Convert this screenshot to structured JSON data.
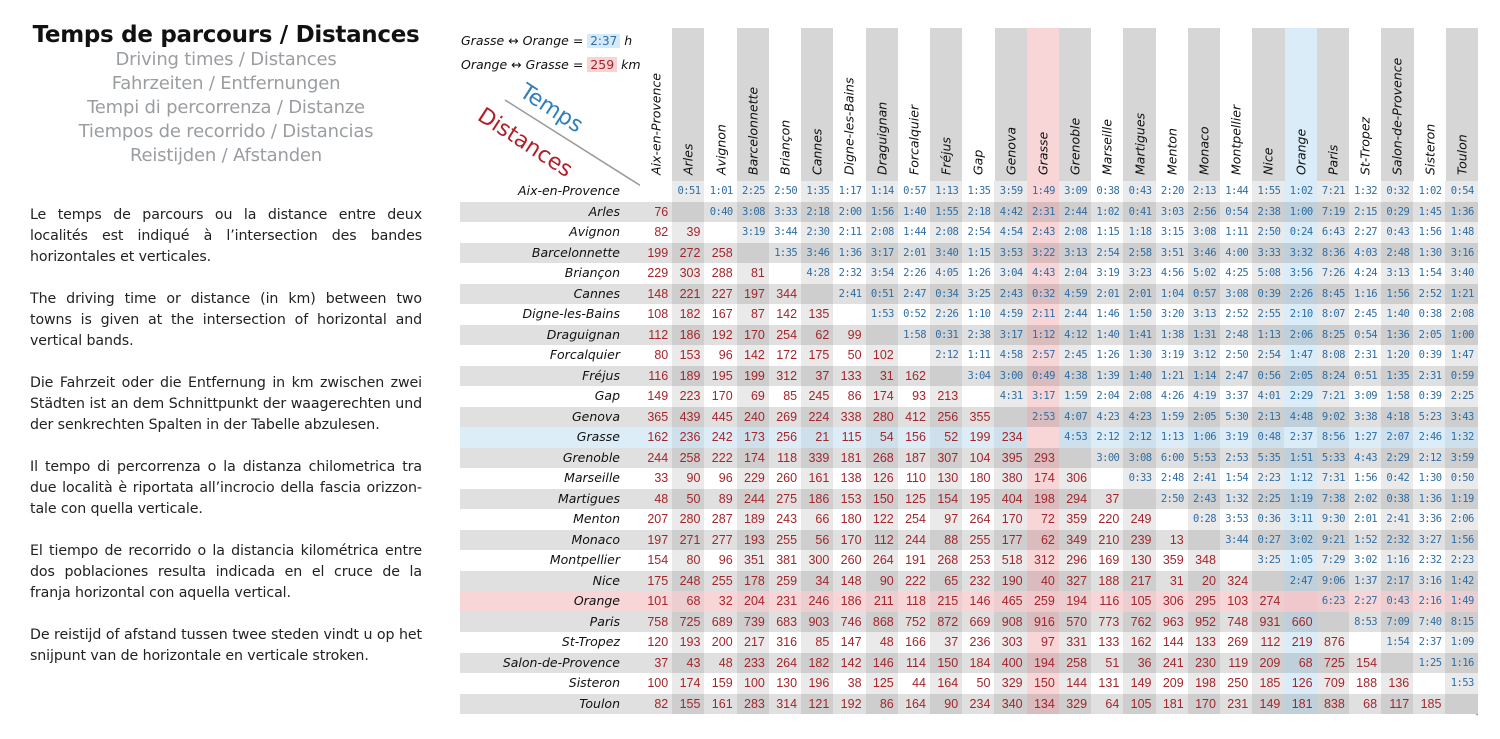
{
  "header": {
    "title": "Temps de parcours / Distances",
    "subtitles": [
      "Driving times / Distances",
      "Fahrzeiten / Entfernungen",
      "Tempi di percorrenza / Distanze",
      "Tiempos de recorrido / Distancias",
      "Reistijden / Afstanden"
    ]
  },
  "paragraphs": [
    "Le temps de parcours ou la distance entre deux localités est indiqué à l’intersection des bandes horizontales et verticales.",
    "The driving time or distance (in km) between two towns is given at the intersection of horizontal and vertical bands.",
    "Die Fahrzeit oder die Entfernung in km zwischen zwei Städten ist an dem Schnittpunkt der waagerechten und der senkrechten Spalten in der Tabelle abzulesen.",
    "Il tempo di percorrenza o la distanza chilometrica tra due località è riportata all’incrocio della fascia orizzon­tale con quella verticale.",
    "El tiempo de recorrido o la distancia kilométrica entre dos poblaciones resulta indicada en el cruce de la franja horizontal con aquella vertical.",
    "De reistijd of afstand tussen twee steden vindt u op het snijpunt van de horizontale en verticale stroken."
  ],
  "legend": {
    "time_example": {
      "from": "Grasse",
      "to": "Orange",
      "arrow": "↔",
      "eq": "=",
      "value": "2:37",
      "unit": "h"
    },
    "distance_example": {
      "from": "Orange",
      "to": "Grasse",
      "arrow": "↔",
      "eq": "=",
      "value": "259",
      "unit": "km"
    },
    "temps_label": "Temps",
    "distances_label": "Distances"
  },
  "colors": {
    "time": "#2e6ea5",
    "distance": "#a3262c",
    "highlight_grasse_col": "#f8d6d8",
    "highlight_orange_col": "#d9ecf8"
  },
  "highlight": {
    "time_town": "Grasse",
    "distance_town": "Orange"
  },
  "towns": [
    "Aix-en-Provence",
    "Arles",
    "Avignon",
    "Barcelonnette",
    "Briançon",
    "Cannes",
    "Digne-les-Bains",
    "Draguignan",
    "Forcalquier",
    "Fréjus",
    "Gap",
    "Genova",
    "Grasse",
    "Grenoble",
    "Marseille",
    "Martigues",
    "Menton",
    "Monaco",
    "Montpellier",
    "Nice",
    "Orange",
    "Paris",
    "St-Tropez",
    "Salon-de-Provence",
    "Sisteron",
    "Toulon"
  ],
  "matrix": [
    {
      "distances": [],
      "times": [
        "0:51",
        "1:01",
        "2:25",
        "2:50",
        "1:35",
        "1:17",
        "1:14",
        "0:57",
        "1:13",
        "1:35",
        "3:59",
        "1:49",
        "3:09",
        "0:38",
        "0:43",
        "2:20",
        "2:13",
        "1:44",
        "1:55",
        "1:02",
        "7:21",
        "1:32",
        "0:32",
        "1:02",
        "0:54"
      ]
    },
    {
      "distances": [
        "76"
      ],
      "times": [
        "0:40",
        "3:08",
        "3:33",
        "2:18",
        "2:00",
        "1:56",
        "1:40",
        "1:55",
        "2:18",
        "4:42",
        "2:31",
        "2:44",
        "1:02",
        "0:41",
        "3:03",
        "2:56",
        "0:54",
        "2:38",
        "1:00",
        "7:19",
        "2:15",
        "0:29",
        "1:45",
        "1:36"
      ]
    },
    {
      "distances": [
        "82",
        "39"
      ],
      "times": [
        "3:19",
        "3:44",
        "2:30",
        "2:11",
        "2:08",
        "1:44",
        "2:08",
        "2:54",
        "4:54",
        "2:43",
        "2:08",
        "1:15",
        "1:18",
        "3:15",
        "3:08",
        "1:11",
        "2:50",
        "0:24",
        "6:43",
        "2:27",
        "0:43",
        "1:56",
        "1:48"
      ]
    },
    {
      "distances": [
        "199",
        "272",
        "258"
      ],
      "times": [
        "1:35",
        "3:46",
        "1:36",
        "3:17",
        "2:01",
        "3:40",
        "1:15",
        "3:53",
        "3:22",
        "3:13",
        "2:54",
        "2:58",
        "3:51",
        "3:46",
        "4:00",
        "3:33",
        "3:32",
        "8:36",
        "4:03",
        "2:48",
        "1:30",
        "3:16"
      ]
    },
    {
      "distances": [
        "229",
        "303",
        "288",
        "81"
      ],
      "times": [
        "4:28",
        "2:32",
        "3:54",
        "2:26",
        "4:05",
        "1:26",
        "3:04",
        "4:43",
        "2:04",
        "3:19",
        "3:23",
        "4:56",
        "5:02",
        "4:25",
        "5:08",
        "3:56",
        "7:26",
        "4:24",
        "3:13",
        "1:54",
        "3:40"
      ]
    },
    {
      "distances": [
        "148",
        "221",
        "227",
        "197",
        "344"
      ],
      "times": [
        "2:41",
        "0:51",
        "2:47",
        "0:34",
        "3:25",
        "2:43",
        "0:32",
        "4:59",
        "2:01",
        "2:01",
        "1:04",
        "0:57",
        "3:08",
        "0:39",
        "2:26",
        "8:45",
        "1:16",
        "1:56",
        "2:52",
        "1:21"
      ]
    },
    {
      "distances": [
        "108",
        "182",
        "167",
        "87",
        "142",
        "135"
      ],
      "times": [
        "1:53",
        "0:52",
        "2:26",
        "1:10",
        "4:59",
        "2:11",
        "2:44",
        "1:46",
        "1:50",
        "3:20",
        "3:13",
        "2:52",
        "2:55",
        "2:10",
        "8:07",
        "2:45",
        "1:40",
        "0:38",
        "2:08"
      ]
    },
    {
      "distances": [
        "112",
        "186",
        "192",
        "170",
        "254",
        "62",
        "99"
      ],
      "times": [
        "1:58",
        "0:31",
        "2:38",
        "3:17",
        "1:12",
        "4:12",
        "1:40",
        "1:41",
        "1:38",
        "1:31",
        "2:48",
        "1:13",
        "2:06",
        "8:25",
        "0:54",
        "1:36",
        "2:05",
        "1:00"
      ]
    },
    {
      "distances": [
        "80",
        "153",
        "96",
        "142",
        "172",
        "175",
        "50",
        "102"
      ],
      "times": [
        "2:12",
        "1:11",
        "4:58",
        "2:57",
        "2:45",
        "1:26",
        "1:30",
        "3:19",
        "3:12",
        "2:50",
        "2:54",
        "1:47",
        "8:08",
        "2:31",
        "1:20",
        "0:39",
        "1:47"
      ]
    },
    {
      "distances": [
        "116",
        "189",
        "195",
        "199",
        "312",
        "37",
        "133",
        "31",
        "162"
      ],
      "times": [
        "3:04",
        "3:00",
        "0:49",
        "4:38",
        "1:39",
        "1:40",
        "1:21",
        "1:14",
        "2:47",
        "0:56",
        "2:05",
        "8:24",
        "0:51",
        "1:35",
        "2:31",
        "0:59"
      ]
    },
    {
      "distances": [
        "149",
        "223",
        "170",
        "69",
        "85",
        "245",
        "86",
        "174",
        "93",
        "213"
      ],
      "times": [
        "4:31",
        "3:17",
        "1:59",
        "2:04",
        "2:08",
        "4:26",
        "4:19",
        "3:37",
        "4:01",
        "2:29",
        "7:21",
        "3:09",
        "1:58",
        "0:39",
        "2:25"
      ]
    },
    {
      "distances": [
        "365",
        "439",
        "445",
        "240",
        "269",
        "224",
        "338",
        "280",
        "412",
        "256",
        "355"
      ],
      "times": [
        "2:53",
        "4:07",
        "4:23",
        "4:23",
        "1:59",
        "2:05",
        "5:30",
        "2:13",
        "4:48",
        "9:02",
        "3:38",
        "4:18",
        "5:23",
        "3:43"
      ]
    },
    {
      "distances": [
        "162",
        "236",
        "242",
        "173",
        "256",
        "21",
        "115",
        "54",
        "156",
        "52",
        "199",
        "234"
      ],
      "times": [
        "4:53",
        "2:12",
        "2:12",
        "1:13",
        "1:06",
        "3:19",
        "0:48",
        "2:37",
        "8:56",
        "1:27",
        "2:07",
        "2:46",
        "1:32"
      ]
    },
    {
      "distances": [
        "244",
        "258",
        "222",
        "174",
        "118",
        "339",
        "181",
        "268",
        "187",
        "307",
        "104",
        "395",
        "293"
      ],
      "times": [
        "3:00",
        "3:08",
        "6:00",
        "5:53",
        "2:53",
        "5:35",
        "1:51",
        "5:33",
        "4:43",
        "2:29",
        "2:12",
        "3:59"
      ]
    },
    {
      "distances": [
        "33",
        "90",
        "96",
        "229",
        "260",
        "161",
        "138",
        "126",
        "110",
        "130",
        "180",
        "380",
        "174",
        "306"
      ],
      "times": [
        "0:33",
        "2:48",
        "2:41",
        "1:54",
        "2:23",
        "1:12",
        "7:31",
        "1:56",
        "0:42",
        "1:30",
        "0:50"
      ]
    },
    {
      "distances": [
        "48",
        "50",
        "89",
        "244",
        "275",
        "186",
        "153",
        "150",
        "125",
        "154",
        "195",
        "404",
        "198",
        "294",
        "37"
      ],
      "times": [
        "2:50",
        "2:43",
        "1:32",
        "2:25",
        "1:19",
        "7:38",
        "2:02",
        "0:38",
        "1:36",
        "1:19"
      ]
    },
    {
      "distances": [
        "207",
        "280",
        "287",
        "189",
        "243",
        "66",
        "180",
        "122",
        "254",
        "97",
        "264",
        "170",
        "72",
        "359",
        "220",
        "249"
      ],
      "times": [
        "0:28",
        "3:53",
        "0:36",
        "3:11",
        "9:30",
        "2:01",
        "2:41",
        "3:36",
        "2:06"
      ]
    },
    {
      "distances": [
        "197",
        "271",
        "277",
        "193",
        "255",
        "56",
        "170",
        "112",
        "244",
        "88",
        "255",
        "177",
        "62",
        "349",
        "210",
        "239",
        "13"
      ],
      "times": [
        "3:44",
        "0:27",
        "3:02",
        "9:21",
        "1:52",
        "2:32",
        "3:27",
        "1:56"
      ]
    },
    {
      "distances": [
        "154",
        "80",
        "96",
        "351",
        "381",
        "300",
        "260",
        "264",
        "191",
        "268",
        "253",
        "518",
        "312",
        "296",
        "169",
        "130",
        "359",
        "348"
      ],
      "times": [
        "3:25",
        "1:05",
        "7:29",
        "3:02",
        "1:16",
        "2:32",
        "2:23"
      ]
    },
    {
      "distances": [
        "175",
        "248",
        "255",
        "178",
        "259",
        "34",
        "148",
        "90",
        "222",
        "65",
        "232",
        "190",
        "40",
        "327",
        "188",
        "217",
        "31",
        "20",
        "324"
      ],
      "times": [
        "2:47",
        "9:06",
        "1:37",
        "2:17",
        "3:16",
        "1:42"
      ]
    },
    {
      "distances": [
        "101",
        "68",
        "32",
        "204",
        "231",
        "246",
        "186",
        "211",
        "118",
        "215",
        "146",
        "465",
        "259",
        "194",
        "116",
        "105",
        "306",
        "295",
        "103",
        "274"
      ],
      "times": [
        "6:23",
        "2:27",
        "0:43",
        "2:16",
        "1:49"
      ]
    },
    {
      "distances": [
        "758",
        "725",
        "689",
        "739",
        "683",
        "903",
        "746",
        "868",
        "752",
        "872",
        "669",
        "908",
        "916",
        "570",
        "773",
        "762",
        "963",
        "952",
        "748",
        "931",
        "660"
      ],
      "times": [
        "8:53",
        "7:09",
        "7:40",
        "8:15"
      ]
    },
    {
      "distances": [
        "120",
        "193",
        "200",
        "217",
        "316",
        "85",
        "147",
        "48",
        "166",
        "37",
        "236",
        "303",
        "97",
        "331",
        "133",
        "162",
        "144",
        "133",
        "269",
        "112",
        "219",
        "876"
      ],
      "times": [
        "1:54",
        "2:37",
        "1:09"
      ]
    },
    {
      "distances": [
        "37",
        "43",
        "48",
        "233",
        "264",
        "182",
        "142",
        "146",
        "114",
        "150",
        "184",
        "400",
        "194",
        "258",
        "51",
        "36",
        "241",
        "230",
        "119",
        "209",
        "68",
        "725",
        "154"
      ],
      "times": [
        "1:25",
        "1:16"
      ]
    },
    {
      "distances": [
        "100",
        "174",
        "159",
        "100",
        "130",
        "196",
        "38",
        "125",
        "44",
        "164",
        "50",
        "329",
        "150",
        "144",
        "131",
        "149",
        "209",
        "198",
        "250",
        "185",
        "126",
        "709",
        "188",
        "136"
      ],
      "times": [
        "1:53"
      ]
    },
    {
      "distances": [
        "82",
        "155",
        "161",
        "283",
        "314",
        "121",
        "192",
        "86",
        "164",
        "90",
        "234",
        "340",
        "134",
        "329",
        "64",
        "105",
        "181",
        "170",
        "231",
        "149",
        "181",
        "838",
        "68",
        "117",
        "185"
      ],
      "times": []
    }
  ]
}
